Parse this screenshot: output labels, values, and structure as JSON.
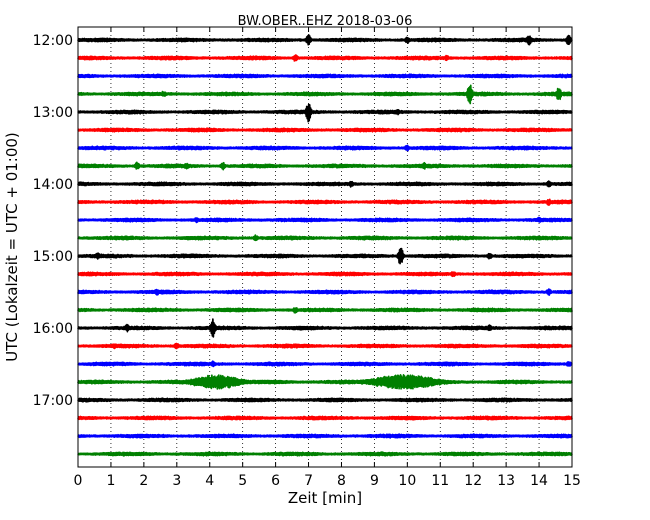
{
  "chart_data": {
    "type": "line",
    "title": "BW.OBER..EHZ 2018-03-06",
    "xlabel": "Zeit  [min]",
    "ylabel": "UTC (Lokalzeit = UTC + 01:00)",
    "xlim": [
      0,
      15
    ],
    "x_ticks": [
      "0",
      "1",
      "2",
      "3",
      "4",
      "5",
      "6",
      "7",
      "8",
      "9",
      "10",
      "11",
      "12",
      "13",
      "14",
      "15"
    ],
    "y_tick_labels": [
      "12:00",
      "13:00",
      "14:00",
      "15:00",
      "16:00",
      "17:00"
    ],
    "grid": true,
    "colors": [
      "#000000",
      "#ff0000",
      "#0000ff",
      "#008000"
    ],
    "traces": [
      {
        "start": "12:00",
        "color": "#000000",
        "events": [
          {
            "min": 7.0,
            "amp": 0.7
          },
          {
            "min": 10.0,
            "amp": 0.45
          },
          {
            "min": 13.7,
            "amp": 0.7
          },
          {
            "min": 14.9,
            "amp": 0.7
          }
        ]
      },
      {
        "start": "12:15",
        "color": "#ff0000",
        "events": [
          {
            "min": 6.6,
            "amp": 0.45
          },
          {
            "min": 11.2,
            "amp": 0.35
          }
        ]
      },
      {
        "start": "12:30",
        "color": "#0000ff",
        "events": []
      },
      {
        "start": "12:45",
        "color": "#008000",
        "events": [
          {
            "min": 11.9,
            "amp": 1.3
          },
          {
            "min": 14.6,
            "amp": 0.9
          },
          {
            "min": 2.6,
            "amp": 0.4
          }
        ]
      },
      {
        "start": "13:00",
        "color": "#000000",
        "events": [
          {
            "min": 7.0,
            "amp": 1.3
          },
          {
            "min": 9.7,
            "amp": 0.4
          }
        ]
      },
      {
        "start": "13:15",
        "color": "#ff0000",
        "events": []
      },
      {
        "start": "13:30",
        "color": "#0000ff",
        "events": [
          {
            "min": 10.0,
            "amp": 0.4
          }
        ]
      },
      {
        "start": "13:45",
        "color": "#008000",
        "events": [
          {
            "min": 1.8,
            "amp": 0.5
          },
          {
            "min": 3.3,
            "amp": 0.45
          },
          {
            "min": 4.4,
            "amp": 0.5
          },
          {
            "min": 10.5,
            "amp": 0.45
          }
        ]
      },
      {
        "start": "14:00",
        "color": "#000000",
        "events": [
          {
            "min": 8.3,
            "amp": 0.45
          },
          {
            "min": 14.3,
            "amp": 0.4
          }
        ]
      },
      {
        "start": "14:15",
        "color": "#ff0000",
        "events": [
          {
            "min": 14.3,
            "amp": 0.45
          }
        ]
      },
      {
        "start": "14:30",
        "color": "#0000ff",
        "events": [
          {
            "min": 3.6,
            "amp": 0.35
          },
          {
            "min": 14.0,
            "amp": 0.35
          }
        ]
      },
      {
        "start": "14:45",
        "color": "#008000",
        "events": [
          {
            "min": 5.4,
            "amp": 0.4
          }
        ]
      },
      {
        "start": "15:00",
        "color": "#000000",
        "events": [
          {
            "min": 0.6,
            "amp": 0.45
          },
          {
            "min": 9.8,
            "amp": 1.3
          },
          {
            "min": 12.5,
            "amp": 0.4
          }
        ]
      },
      {
        "start": "15:15",
        "color": "#ff0000",
        "events": [
          {
            "min": 11.4,
            "amp": 0.4
          }
        ]
      },
      {
        "start": "15:30",
        "color": "#0000ff",
        "events": [
          {
            "min": 2.4,
            "amp": 0.4
          },
          {
            "min": 14.3,
            "amp": 0.45
          }
        ]
      },
      {
        "start": "15:45",
        "color": "#008000",
        "events": [
          {
            "min": 6.6,
            "amp": 0.4
          }
        ]
      },
      {
        "start": "16:00",
        "color": "#000000",
        "events": [
          {
            "min": 4.1,
            "amp": 1.3
          },
          {
            "min": 1.5,
            "amp": 0.5
          },
          {
            "min": 12.5,
            "amp": 0.4
          }
        ]
      },
      {
        "start": "16:15",
        "color": "#ff0000",
        "events": [
          {
            "min": 1.1,
            "amp": 0.4
          },
          {
            "min": 3.0,
            "amp": 0.4
          }
        ]
      },
      {
        "start": "16:30",
        "color": "#0000ff",
        "events": [
          {
            "min": 4.1,
            "amp": 0.45
          },
          {
            "min": 14.9,
            "amp": 0.4
          }
        ]
      },
      {
        "start": "16:45",
        "color": "#008000",
        "events": [
          {
            "min": 4.2,
            "amp": 0.95,
            "dur": 0.8
          },
          {
            "min": 9.9,
            "amp": 0.95,
            "dur": 1.1
          }
        ]
      },
      {
        "start": "17:00",
        "color": "#000000",
        "events": []
      },
      {
        "start": "17:15",
        "color": "#ff0000",
        "events": []
      },
      {
        "start": "17:30",
        "color": "#0000ff",
        "events": []
      },
      {
        "start": "17:45",
        "color": "#008000",
        "events": []
      }
    ]
  }
}
